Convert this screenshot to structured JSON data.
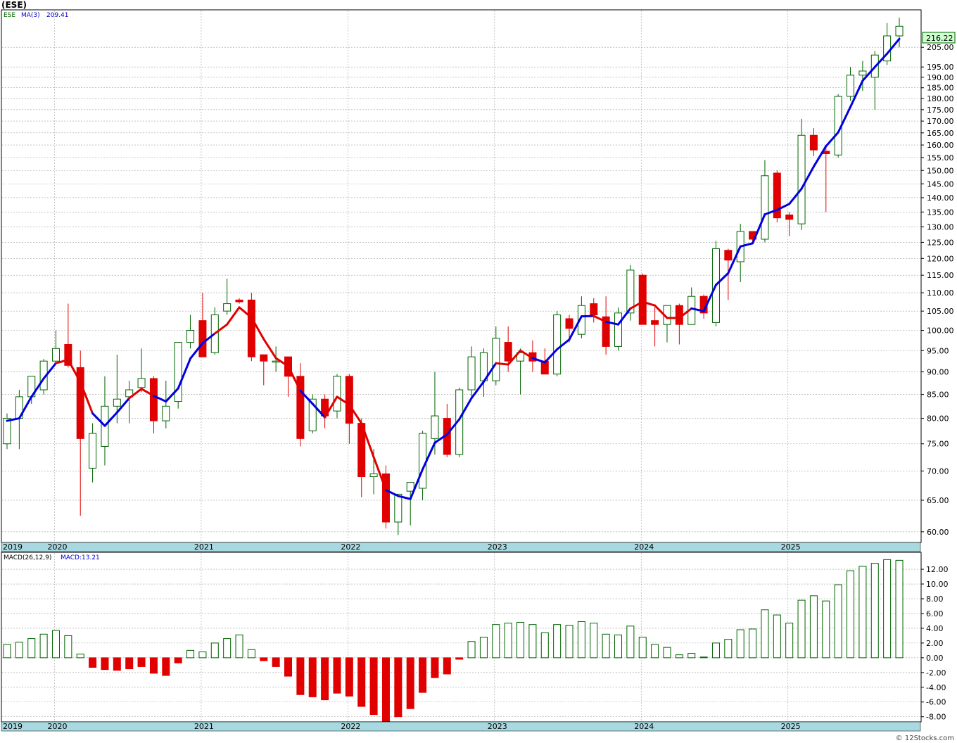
{
  "header": {
    "title": "(ESE)",
    "legend_symbol": "ESE",
    "legend_ma_label": "MA(3)",
    "legend_ma_value": "209.41",
    "last_price": "216.22"
  },
  "macd_header": {
    "label": "MACD(26,12,9)",
    "value_label": "MACD:13.21"
  },
  "watermark": "© 12Stocks.com",
  "colors": {
    "up": "#006400",
    "down": "#e00000",
    "ma_up": "#0000e0",
    "ma_down": "#e00000",
    "axis_band": "#a8d8e0",
    "grid": "#a0a0a0",
    "price_box": "#cfffcf"
  },
  "chart_data": [
    {
      "type": "candlestick",
      "title": "",
      "interval": "monthly",
      "scale": "log",
      "ylim": [
        58.5,
        225
      ],
      "y_ticks": [
        60,
        65,
        70,
        75,
        80,
        85,
        90,
        95,
        100,
        105,
        110,
        115,
        120,
        125,
        130,
        135,
        140,
        145,
        150,
        155,
        160,
        165,
        170,
        175,
        180,
        185,
        190,
        195,
        205
      ],
      "y_tick_labels": [
        "60.00",
        "65.00",
        "70.00",
        "75.00",
        "80.00",
        "85.00",
        "90.00",
        "95.00",
        "100.00",
        "105.00",
        "110.00",
        "115.00",
        "120.00",
        "125.00",
        "130.00",
        "135.00",
        "140.00",
        "145.00",
        "150.00",
        "155.00",
        "160.00",
        "165.00",
        "170.00",
        "175.00",
        "180.00",
        "185.00",
        "190.00",
        "195.00",
        "205.00"
      ],
      "x_labels": [
        "2019",
        "2020",
        "2021",
        "2022",
        "2023",
        "2024",
        "2025"
      ],
      "x_label_months": [
        0,
        4,
        16,
        28,
        40,
        52,
        64
      ],
      "grid": true,
      "ohlc": [
        [
          75.0,
          81.0,
          74.0,
          80.0
        ],
        [
          80.0,
          86.0,
          74.0,
          84.5
        ],
        [
          84.5,
          89.0,
          83.0,
          89.0
        ],
        [
          86.0,
          93.0,
          85.0,
          92.5
        ],
        [
          92.5,
          100.0,
          92.0,
          95.5
        ],
        [
          96.5,
          107.0,
          91.0,
          91.5
        ],
        [
          91.0,
          95.0,
          62.5,
          76.0
        ],
        [
          70.5,
          79.0,
          68.0,
          77.0
        ],
        [
          74.5,
          89.0,
          71.0,
          82.5
        ],
        [
          82.5,
          94.0,
          79.0,
          84.0
        ],
        [
          84.5,
          88.0,
          79.0,
          86.0
        ],
        [
          86.5,
          95.5,
          85.5,
          88.5
        ],
        [
          88.5,
          89.0,
          77.0,
          79.5
        ],
        [
          79.5,
          88.0,
          78.0,
          82.5
        ],
        [
          83.5,
          97.0,
          82.0,
          97.0
        ],
        [
          97.0,
          104.0,
          95.5,
          100.0
        ],
        [
          102.5,
          110.0,
          93.5,
          93.5
        ],
        [
          94.5,
          106.0,
          94.0,
          104.0
        ],
        [
          105.0,
          114.0,
          104.0,
          107.0
        ],
        [
          108.0,
          108.5,
          107.0,
          107.5
        ],
        [
          108.0,
          110.0,
          92.5,
          93.5
        ],
        [
          94.0,
          94.0,
          87.0,
          92.5
        ],
        [
          92.5,
          96.0,
          90.0,
          92.5
        ],
        [
          93.5,
          93.5,
          84.5,
          89.0
        ],
        [
          89.0,
          92.0,
          74.5,
          76.0
        ],
        [
          77.5,
          85.0,
          77.0,
          84.0
        ],
        [
          84.0,
          85.0,
          78.0,
          80.5
        ],
        [
          81.5,
          89.5,
          80.0,
          89.0
        ],
        [
          89.0,
          89.5,
          75.0,
          79.0
        ],
        [
          79.0,
          80.0,
          65.5,
          69.0
        ],
        [
          69.0,
          74.0,
          66.0,
          69.5
        ],
        [
          69.5,
          71.0,
          60.5,
          61.5
        ],
        [
          61.5,
          64.5,
          59.5,
          66.0
        ],
        [
          66.5,
          68.0,
          61.0,
          68.0
        ],
        [
          67.0,
          77.5,
          65.0,
          77.0
        ],
        [
          76.0,
          90.0,
          73.0,
          80.5
        ],
        [
          80.0,
          83.0,
          72.5,
          73.0
        ],
        [
          73.0,
          86.5,
          72.5,
          86.0
        ],
        [
          86.0,
          96.0,
          84.5,
          93.5
        ],
        [
          88.0,
          95.5,
          84.5,
          94.5
        ],
        [
          88.0,
          101.0,
          87.0,
          98.0
        ],
        [
          97.0,
          101.0,
          90.0,
          92.5
        ],
        [
          92.5,
          95.5,
          85.0,
          94.5
        ],
        [
          94.5,
          97.5,
          90.0,
          92.5
        ],
        [
          92.5,
          95.5,
          89.5,
          89.5
        ],
        [
          89.5,
          105.0,
          89.0,
          104.0
        ],
        [
          103.0,
          104.0,
          97.0,
          100.5
        ],
        [
          99.0,
          109.0,
          98.0,
          106.5
        ],
        [
          107.0,
          108.5,
          102.0,
          104.0
        ],
        [
          103.5,
          109.0,
          94.0,
          96.0
        ],
        [
          96.0,
          106.0,
          95.0,
          104.5
        ],
        [
          104.5,
          118.0,
          102.5,
          116.5
        ],
        [
          115.0,
          115.5,
          101.5,
          101.5
        ],
        [
          102.5,
          106.0,
          96.0,
          101.5
        ],
        [
          101.5,
          106.5,
          97.0,
          106.5
        ],
        [
          106.5,
          107.0,
          96.5,
          101.5
        ],
        [
          101.5,
          111.5,
          101.5,
          109.0
        ],
        [
          109.0,
          109.5,
          103.0,
          104.5
        ],
        [
          102.0,
          125.5,
          101.0,
          123.0
        ],
        [
          122.5,
          123.0,
          108.0,
          119.5
        ],
        [
          119.0,
          131.0,
          113.0,
          128.5
        ],
        [
          128.5,
          128.5,
          125.0,
          126.0
        ],
        [
          126.0,
          154.0,
          125.0,
          148.0
        ],
        [
          149.0,
          150.0,
          131.5,
          133.0
        ],
        [
          134.0,
          135.0,
          127.0,
          132.5
        ],
        [
          131.0,
          171.0,
          129.0,
          164.0
        ],
        [
          164.0,
          167.0,
          155.5,
          158.0
        ],
        [
          157.5,
          160.0,
          135.0,
          156.5
        ],
        [
          156.0,
          182.0,
          155.0,
          181.0
        ],
        [
          181.0,
          195.0,
          179.0,
          191.0
        ],
        [
          191.0,
          198.0,
          183.5,
          193.0
        ],
        [
          190.0,
          203.0,
          175.0,
          201.0
        ],
        [
          198.0,
          218.0,
          196.0,
          211.0
        ],
        [
          211.0,
          221.0,
          205.0,
          216.22
        ]
      ],
      "ma3": [
        79.5,
        80.0,
        84.5,
        88.5,
        92.0,
        92.8,
        87.7,
        81.0,
        78.5,
        81.2,
        84.2,
        86.2,
        84.7,
        83.5,
        86.3,
        93.1,
        96.8,
        99.2,
        101.5,
        106.0,
        103.3,
        97.8,
        93.2,
        91.3,
        85.8,
        83.0,
        80.2,
        84.5,
        82.8,
        79.0,
        72.5,
        66.7,
        65.7,
        65.2,
        70.3,
        75.2,
        76.8,
        79.8,
        84.2,
        87.8,
        92.0,
        91.7,
        95.0,
        93.2,
        92.2,
        95.3,
        97.7,
        103.6,
        103.7,
        102.2,
        101.5,
        105.7,
        107.5,
        106.5,
        103.2,
        103.2,
        105.7,
        105.0,
        112.2,
        115.6,
        123.7,
        124.7,
        134.2,
        135.7,
        137.8,
        143.2,
        151.5,
        159.5,
        165.2,
        176.2,
        188.3,
        195.0,
        201.7,
        209.41
      ],
      "ma_trend": [
        "up",
        "up",
        "up",
        "up",
        "up",
        "down",
        "down",
        "down",
        "up",
        "up",
        "up",
        "down",
        "down",
        "up",
        "up",
        "up",
        "up",
        "up",
        "down",
        "down",
        "down",
        "down",
        "down",
        "down",
        "down",
        "up",
        "up",
        "down",
        "down",
        "down",
        "down",
        "down",
        "up",
        "up",
        "up",
        "up",
        "up",
        "up",
        "up",
        "up",
        "up",
        "down",
        "down",
        "down",
        "up",
        "up",
        "up",
        "up",
        "up",
        "down",
        "up",
        "up",
        "down",
        "down",
        "down",
        "down",
        "down",
        "up",
        "up",
        "up",
        "up",
        "up",
        "up",
        "up",
        "up",
        "up",
        "up",
        "up",
        "up",
        "up",
        "up",
        "up",
        "up",
        "up"
      ]
    },
    {
      "type": "bar",
      "title": "MACD(26,12,9)",
      "ylim": [
        -8.6,
        14.2
      ],
      "y_ticks": [
        -8,
        -6,
        -4,
        -2,
        0,
        2,
        4,
        6,
        8,
        10,
        12
      ],
      "y_tick_labels": [
        "-8.00",
        "-6.00",
        "-4.00",
        "-2.00",
        "0.00",
        "2.00",
        "4.00",
        "6.00",
        "8.00",
        "10.00",
        "12.00"
      ],
      "x_labels": [
        "2019",
        "2020",
        "2021",
        "2022",
        "2023",
        "2024",
        "2025"
      ],
      "values": [
        1.8,
        2.1,
        2.6,
        3.2,
        3.7,
        3.0,
        0.5,
        -1.3,
        -1.6,
        -1.7,
        -1.5,
        -1.2,
        -2.1,
        -2.4,
        -0.7,
        1.0,
        0.8,
        2.0,
        2.6,
        3.1,
        1.1,
        -0.4,
        -1.2,
        -2.5,
        -5.0,
        -5.3,
        -5.7,
        -4.8,
        -5.2,
        -6.6,
        -7.7,
        -8.6,
        -8.0,
        -6.9,
        -4.7,
        -2.7,
        -2.2,
        -0.2,
        2.2,
        2.8,
        4.5,
        4.7,
        4.8,
        4.5,
        3.4,
        4.5,
        4.4,
        4.9,
        4.7,
        3.2,
        3.1,
        4.3,
        2.8,
        1.8,
        1.4,
        0.4,
        0.6,
        0.1,
        2.0,
        2.5,
        3.8,
        3.9,
        6.5,
        5.8,
        4.7,
        7.8,
        8.4,
        7.7,
        9.9,
        11.8,
        12.4,
        12.8,
        13.3,
        13.21
      ]
    }
  ]
}
